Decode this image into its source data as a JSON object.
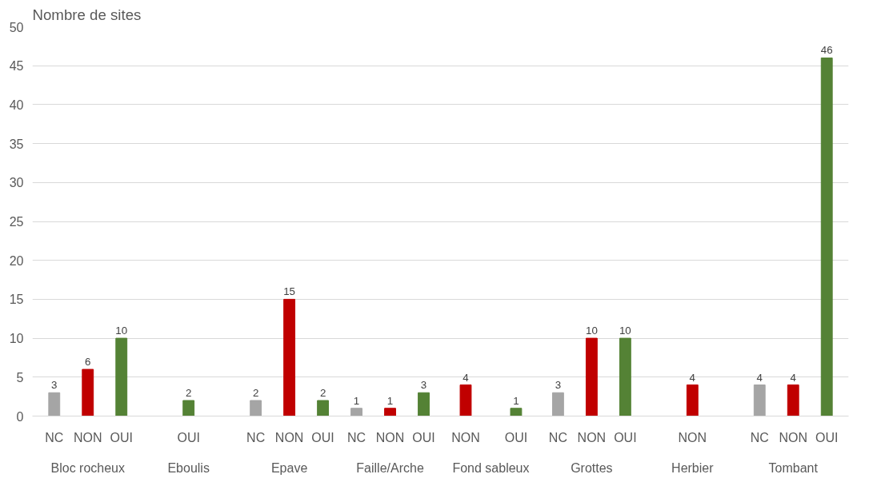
{
  "chart_data": {
    "type": "bar",
    "ylabel": "Nombre de sites",
    "categories": [
      "Bloc rocheux",
      "Eboulis",
      "Epave",
      "Faille/Arche",
      "Fond sableux",
      "Grottes",
      "Herbier",
      "Tombant"
    ],
    "series": [
      {
        "name": "NC",
        "color": "#a5a5a5",
        "values": [
          3,
          null,
          2,
          1,
          null,
          3,
          null,
          4
        ]
      },
      {
        "name": "NON",
        "color": "#c00000",
        "values": [
          6,
          null,
          15,
          1,
          4,
          10,
          4,
          4
        ]
      },
      {
        "name": "OUI",
        "color": "#548235",
        "values": [
          10,
          2,
          2,
          3,
          1,
          10,
          null,
          46
        ]
      }
    ],
    "ylim": [
      0,
      50
    ],
    "yticks": [
      0,
      5,
      10,
      15,
      20,
      25,
      30,
      35,
      40,
      45,
      50
    ],
    "grid": "y",
    "data_labels": true
  }
}
